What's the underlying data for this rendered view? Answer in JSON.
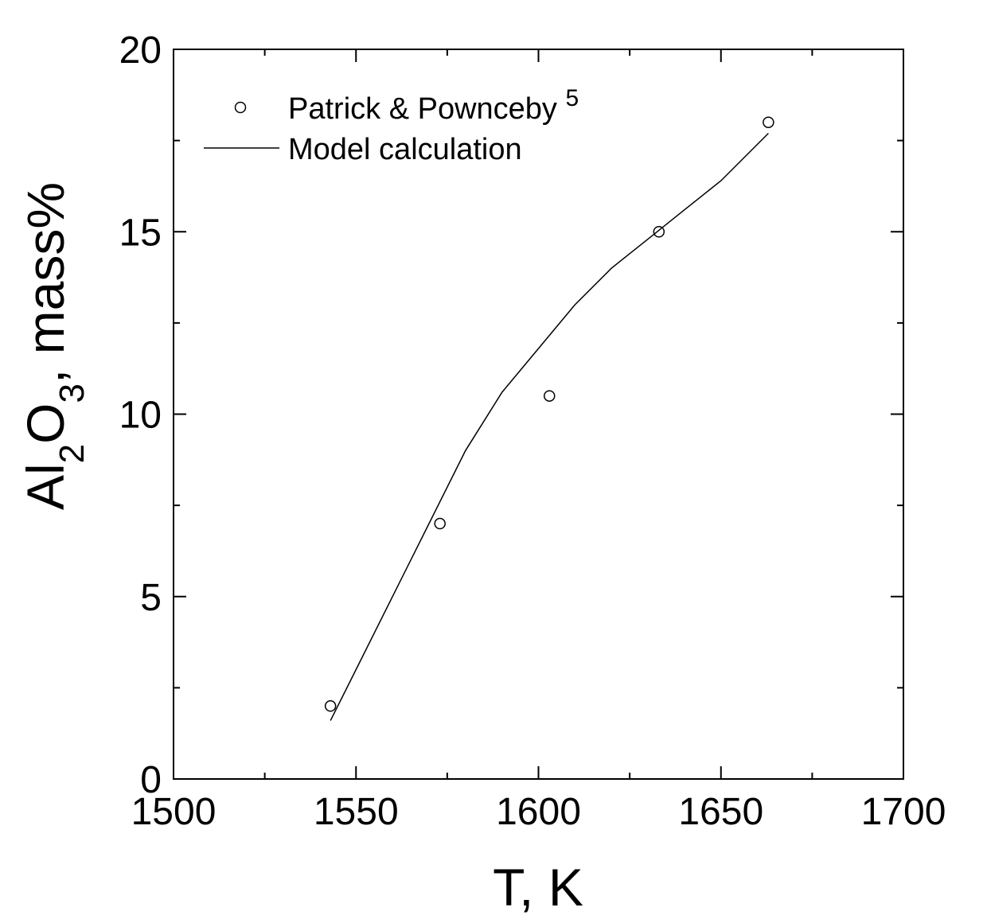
{
  "chart_data": {
    "type": "scatter",
    "xlabel": "T, K",
    "ylabel": {
      "parts": [
        {
          "text": "Al",
          "sub": false
        },
        {
          "text": "2",
          "sub": true
        },
        {
          "text": "O",
          "sub": false
        },
        {
          "text": "3",
          "sub": true
        },
        {
          "text": ", mass%",
          "sub": false
        }
      ]
    },
    "xlim": [
      1500,
      1700
    ],
    "ylim": [
      0,
      20
    ],
    "xticks": [
      1500,
      1550,
      1600,
      1650,
      1700
    ],
    "xtick_labels": [
      "1500",
      "1550",
      "1600",
      "1650",
      "1700"
    ],
    "yticks": [
      0,
      5,
      10,
      15,
      20
    ],
    "ytick_labels": [
      "0",
      "5",
      "10",
      "15",
      "20"
    ],
    "x_minor_step": 25,
    "y_minor_step": 2.5,
    "grid": false,
    "legend_position": "top-left",
    "series": [
      {
        "name": "Patrick & Pownceby",
        "name_superscript": "5",
        "kind": "scatter",
        "marker": "open-circle",
        "color": "#000000",
        "x": [
          1543,
          1573,
          1603,
          1633,
          1663
        ],
        "y": [
          2.0,
          7.0,
          10.5,
          15.0,
          18.0
        ]
      },
      {
        "name": "Model calculation",
        "kind": "line",
        "color": "#000000",
        "x": [
          1543,
          1550,
          1560,
          1570,
          1580,
          1590,
          1600,
          1610,
          1620,
          1630,
          1640,
          1650,
          1663
        ],
        "y": [
          1.6,
          3.0,
          5.0,
          7.0,
          9.0,
          10.6,
          11.8,
          13.0,
          14.0,
          14.8,
          15.6,
          16.4,
          17.7
        ]
      }
    ]
  }
}
